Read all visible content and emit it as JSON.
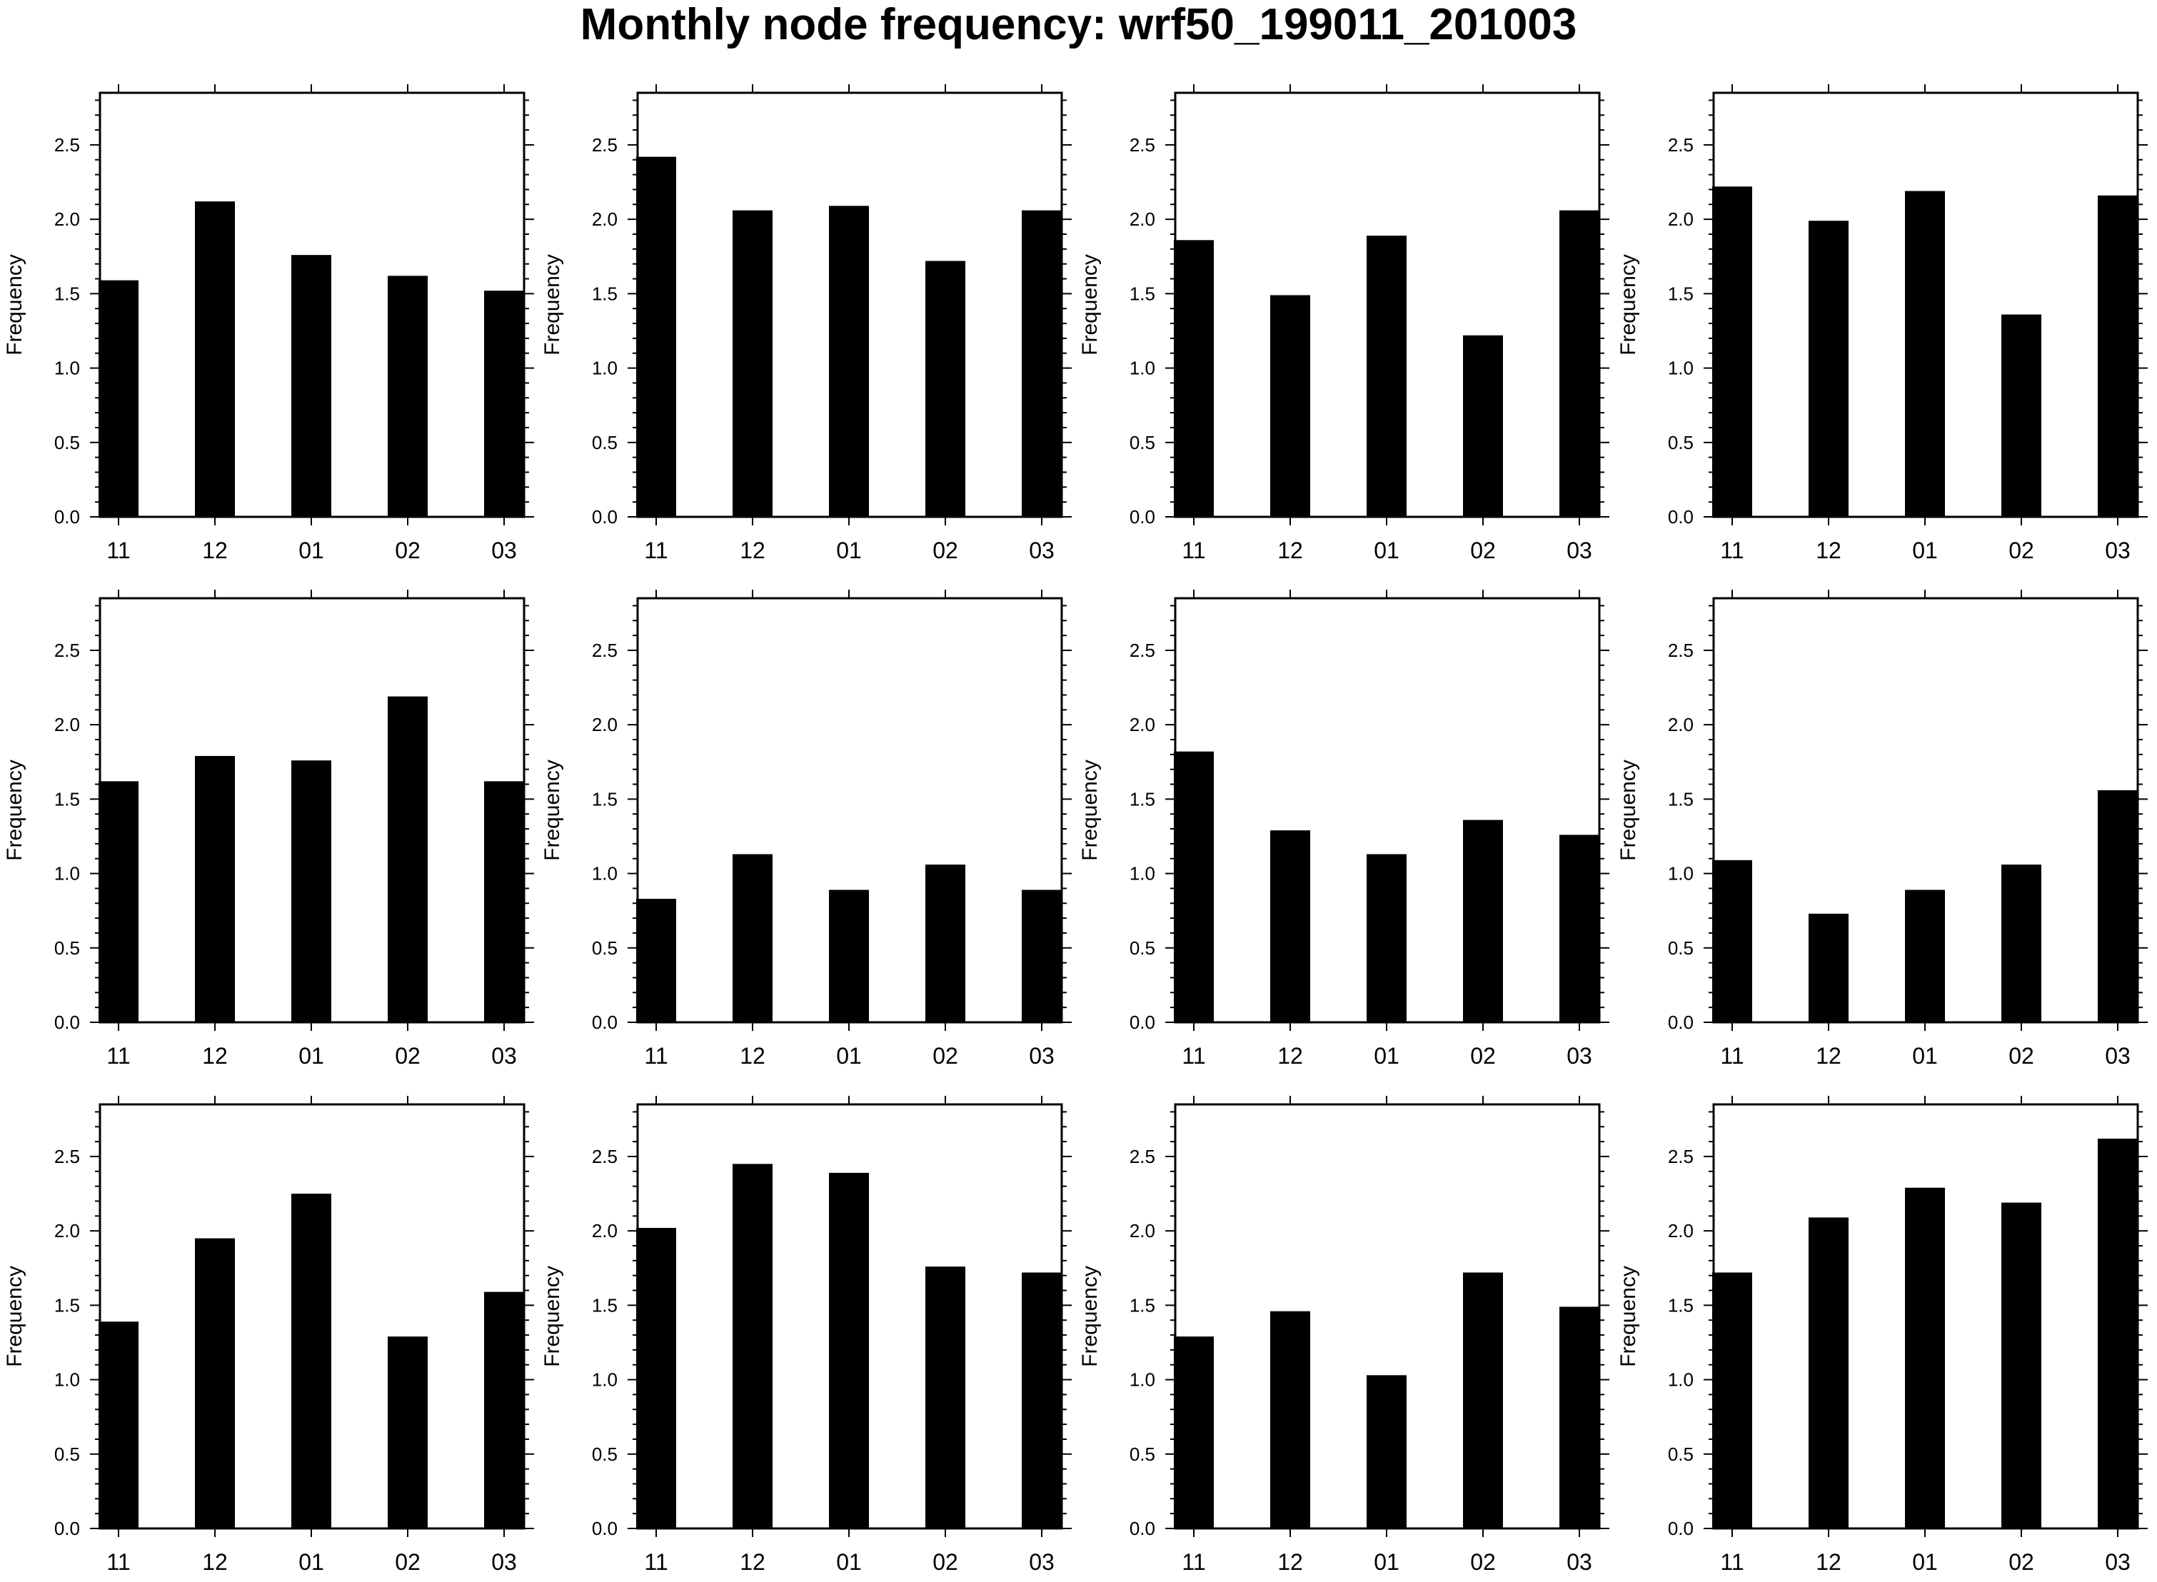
{
  "figure": {
    "title": "Monthly node frequency: wrf50_199011_201003"
  },
  "chart_data": [
    {
      "type": "bar",
      "categories": [
        "11",
        "12",
        "01",
        "02",
        "03"
      ],
      "values": [
        1.59,
        2.12,
        1.76,
        1.62,
        1.52
      ],
      "ylabel": "Frequency",
      "ylim": [
        0,
        2.85
      ],
      "yticks": [
        "0.0",
        "0.5",
        "1.0",
        "1.5",
        "2.0",
        "2.5"
      ]
    },
    {
      "type": "bar",
      "categories": [
        "11",
        "12",
        "01",
        "02",
        "03"
      ],
      "values": [
        2.42,
        2.06,
        2.09,
        1.72,
        2.06
      ],
      "ylabel": "Frequency",
      "ylim": [
        0,
        2.85
      ],
      "yticks": [
        "0.0",
        "0.5",
        "1.0",
        "1.5",
        "2.0",
        "2.5"
      ]
    },
    {
      "type": "bar",
      "categories": [
        "11",
        "12",
        "01",
        "02",
        "03"
      ],
      "values": [
        1.86,
        1.49,
        1.89,
        1.22,
        2.06
      ],
      "ylabel": "Frequency",
      "ylim": [
        0,
        2.85
      ],
      "yticks": [
        "0.0",
        "0.5",
        "1.0",
        "1.5",
        "2.0",
        "2.5"
      ]
    },
    {
      "type": "bar",
      "categories": [
        "11",
        "12",
        "01",
        "02",
        "03"
      ],
      "values": [
        2.22,
        1.99,
        2.19,
        1.36,
        2.16
      ],
      "ylabel": "Frequency",
      "ylim": [
        0,
        2.85
      ],
      "yticks": [
        "0.0",
        "0.5",
        "1.0",
        "1.5",
        "2.0",
        "2.5"
      ]
    },
    {
      "type": "bar",
      "categories": [
        "11",
        "12",
        "01",
        "02",
        "03"
      ],
      "values": [
        1.62,
        1.79,
        1.76,
        2.19,
        1.62
      ],
      "ylabel": "Frequency",
      "ylim": [
        0,
        2.85
      ],
      "yticks": [
        "0.0",
        "0.5",
        "1.0",
        "1.5",
        "2.0",
        "2.5"
      ]
    },
    {
      "type": "bar",
      "categories": [
        "11",
        "12",
        "01",
        "02",
        "03"
      ],
      "values": [
        0.83,
        1.13,
        0.89,
        1.06,
        0.89
      ],
      "ylabel": "Frequency",
      "ylim": [
        0,
        2.85
      ],
      "yticks": [
        "0.0",
        "0.5",
        "1.0",
        "1.5",
        "2.0",
        "2.5"
      ]
    },
    {
      "type": "bar",
      "categories": [
        "11",
        "12",
        "01",
        "02",
        "03"
      ],
      "values": [
        1.82,
        1.29,
        1.13,
        1.36,
        1.26
      ],
      "ylabel": "Frequency",
      "ylim": [
        0,
        2.85
      ],
      "yticks": [
        "0.0",
        "0.5",
        "1.0",
        "1.5",
        "2.0",
        "2.5"
      ]
    },
    {
      "type": "bar",
      "categories": [
        "11",
        "12",
        "01",
        "02",
        "03"
      ],
      "values": [
        1.09,
        0.73,
        0.89,
        1.06,
        1.56
      ],
      "ylabel": "Frequency",
      "ylim": [
        0,
        2.85
      ],
      "yticks": [
        "0.0",
        "0.5",
        "1.0",
        "1.5",
        "2.0",
        "2.5"
      ]
    },
    {
      "type": "bar",
      "categories": [
        "11",
        "12",
        "01",
        "02",
        "03"
      ],
      "values": [
        1.39,
        1.95,
        2.25,
        1.29,
        1.59
      ],
      "ylabel": "Frequency",
      "ylim": [
        0,
        2.85
      ],
      "yticks": [
        "0.0",
        "0.5",
        "1.0",
        "1.5",
        "2.0",
        "2.5"
      ]
    },
    {
      "type": "bar",
      "categories": [
        "11",
        "12",
        "01",
        "02",
        "03"
      ],
      "values": [
        2.02,
        2.45,
        2.39,
        1.76,
        1.72
      ],
      "ylabel": "Frequency",
      "ylim": [
        0,
        2.85
      ],
      "yticks": [
        "0.0",
        "0.5",
        "1.0",
        "1.5",
        "2.0",
        "2.5"
      ]
    },
    {
      "type": "bar",
      "categories": [
        "11",
        "12",
        "01",
        "02",
        "03"
      ],
      "values": [
        1.29,
        1.46,
        1.03,
        1.72,
        1.49
      ],
      "ylabel": "Frequency",
      "ylim": [
        0,
        2.85
      ],
      "yticks": [
        "0.0",
        "0.5",
        "1.0",
        "1.5",
        "2.0",
        "2.5"
      ]
    },
    {
      "type": "bar",
      "categories": [
        "11",
        "12",
        "01",
        "02",
        "03"
      ],
      "values": [
        1.72,
        2.09,
        2.29,
        2.19,
        2.62
      ],
      "ylabel": "Frequency",
      "ylim": [
        0,
        2.85
      ],
      "yticks": [
        "0.0",
        "0.5",
        "1.0",
        "1.5",
        "2.0",
        "2.5"
      ]
    }
  ]
}
